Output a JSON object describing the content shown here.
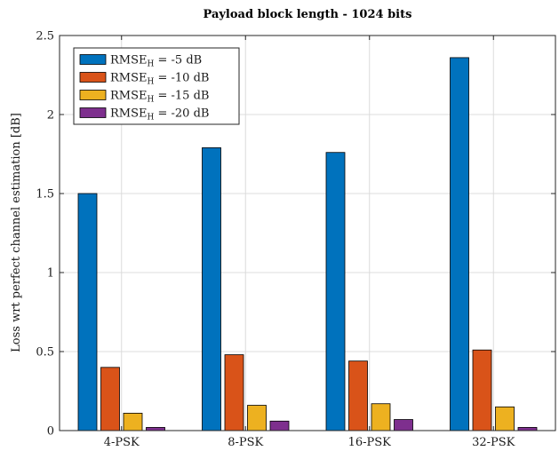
{
  "chart_data": {
    "type": "bar",
    "title": "Payload block length - 1024 bits",
    "ylabel": "Loss wrt perfect channel estimation [dB]",
    "xlabel": "",
    "categories": [
      "4-PSK",
      "8-PSK",
      "16-PSK",
      "32-PSK"
    ],
    "ylim": [
      0,
      2.5
    ],
    "yticks": [
      "0",
      "0.5",
      "1",
      "1.5",
      "2",
      "2.5"
    ],
    "grid": true,
    "legend_position": "top-left",
    "series": [
      {
        "name": "-5 dB",
        "color": "#0072BD",
        "values": [
          1.5,
          1.79,
          1.76,
          2.36
        ]
      },
      {
        "name": "-10 dB",
        "color": "#D95319",
        "values": [
          0.4,
          0.48,
          0.44,
          0.51
        ]
      },
      {
        "name": "-15 dB",
        "color": "#EDB120",
        "values": [
          0.11,
          0.16,
          0.17,
          0.15
        ]
      },
      {
        "name": "-20 dB",
        "color": "#7E2F8E",
        "values": [
          0.02,
          0.06,
          0.07,
          0.02
        ]
      }
    ],
    "legend_label_main": "RMSE",
    "legend_label_sub": "H",
    "legend_label_eq": " = "
  }
}
